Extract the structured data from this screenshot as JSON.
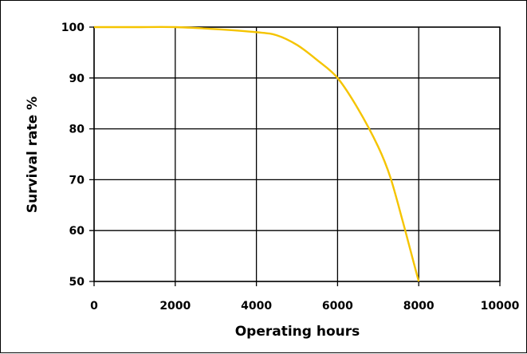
{
  "chart_data": {
    "type": "line",
    "xlabel": "Operating hours",
    "ylabel": "Survival rate %",
    "xlim": [
      0,
      10000
    ],
    "ylim": [
      50,
      100
    ],
    "x_ticks": [
      "0",
      "2000",
      "4000",
      "6000",
      "8000",
      "10000"
    ],
    "y_ticks": [
      "50",
      "60",
      "70",
      "80",
      "90",
      "100"
    ],
    "grid": true,
    "legend": "none",
    "series": [
      {
        "color": "#f5c400",
        "x": [
          0,
          1000,
          2000,
          3000,
          4000,
          4500,
          5000,
          5500,
          6000,
          6500,
          7000,
          7300,
          7600,
          7800,
          8000
        ],
        "y": [
          100,
          100,
          100,
          99.6,
          99,
          98.4,
          96.5,
          93.5,
          90,
          84,
          76.5,
          70.5,
          62,
          56,
          50
        ]
      }
    ]
  }
}
